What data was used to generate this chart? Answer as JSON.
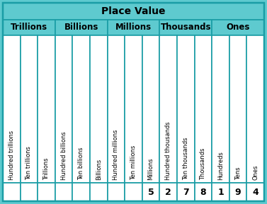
{
  "title": "Place Value",
  "group_headers": [
    "Trillions",
    "Billions",
    "Millions",
    "Thousands",
    "Ones"
  ],
  "col_labels": [
    "Hundred trillions",
    "Ten trillions",
    "Trillions",
    "Hundred billions",
    "Ten billions",
    "Billions",
    "Hundred millions",
    "Ten millions",
    "Millions",
    "Hundred thousands",
    "Ten thousands",
    "Thousands",
    "Hundreds",
    "Tens",
    "Ones"
  ],
  "values": [
    "",
    "",
    "",
    "",
    "",
    "",
    "",
    "",
    "5",
    "2",
    "7",
    "8",
    "1",
    "9",
    "4"
  ],
  "n_cols": 15,
  "group_spans": [
    3,
    3,
    3,
    3,
    3
  ],
  "bg_color": "#5ecacf",
  "cell_bg": "#ffffff",
  "border_color": "#1a9da5",
  "title_fontsize": 10,
  "header_fontsize": 8.5,
  "col_label_fontsize": 6.0,
  "value_fontsize": 9
}
